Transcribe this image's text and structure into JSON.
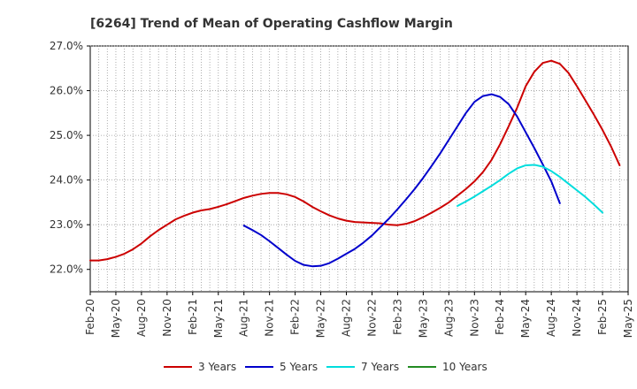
{
  "chart_data": {
    "type": "line",
    "title": "[6264]  Trend of Mean of Operating Cashflow Margin",
    "xlabel": "",
    "ylabel": "",
    "ylim": [
      21.5,
      27.0
    ],
    "yticks": [
      22.0,
      23.0,
      24.0,
      25.0,
      26.0,
      27.0
    ],
    "ytick_labels": [
      "22.0%",
      "23.0%",
      "24.0%",
      "25.0%",
      "26.0%",
      "27.0%"
    ],
    "x_start": "Feb-20",
    "x_count_months": 63,
    "xtick_labels": [
      "Feb-20",
      "May-20",
      "Aug-20",
      "Nov-20",
      "Feb-21",
      "May-21",
      "Aug-21",
      "Nov-21",
      "Feb-22",
      "May-22",
      "Aug-22",
      "Nov-22",
      "Feb-23",
      "May-23",
      "Aug-23",
      "Nov-23",
      "Feb-24",
      "May-24",
      "Aug-24",
      "Nov-24",
      "Feb-25",
      "May-25"
    ],
    "grid": true,
    "legend_position": "bottom",
    "series": [
      {
        "name": "3 Years",
        "color": "#cc0000",
        "start_index": 0,
        "values": [
          22.2,
          22.2,
          22.23,
          22.28,
          22.35,
          22.45,
          22.58,
          22.74,
          22.88,
          23.0,
          23.12,
          23.2,
          23.27,
          23.32,
          23.35,
          23.4,
          23.46,
          23.53,
          23.6,
          23.65,
          23.69,
          23.71,
          23.71,
          23.68,
          23.62,
          23.52,
          23.4,
          23.3,
          23.21,
          23.14,
          23.09,
          23.06,
          23.05,
          23.04,
          23.03,
          23.0,
          22.99,
          23.02,
          23.08,
          23.17,
          23.27,
          23.38,
          23.5,
          23.65,
          23.8,
          23.97,
          24.18,
          24.45,
          24.8,
          25.2,
          25.62,
          26.1,
          26.42,
          26.62,
          26.67,
          26.6,
          26.4,
          26.1,
          25.78,
          25.46,
          25.12,
          24.75,
          24.33
        ]
      },
      {
        "name": "5 Years",
        "color": "#0000cc",
        "start_index": 18,
        "values": [
          22.98,
          22.88,
          22.77,
          22.63,
          22.48,
          22.33,
          22.19,
          22.1,
          22.07,
          22.08,
          22.14,
          22.24,
          22.35,
          22.46,
          22.6,
          22.76,
          22.95,
          23.14,
          23.35,
          23.57,
          23.8,
          24.05,
          24.32,
          24.6,
          24.9,
          25.2,
          25.5,
          25.75,
          25.88,
          25.92,
          25.86,
          25.7,
          25.42,
          25.07,
          24.72,
          24.35,
          23.97,
          23.48
        ]
      },
      {
        "name": "7 Years",
        "color": "#00dddd",
        "start_index": 43,
        "values": [
          23.42,
          23.52,
          23.63,
          23.75,
          23.87,
          24.0,
          24.14,
          24.26,
          24.33,
          24.34,
          24.3,
          24.2,
          24.07,
          23.92,
          23.77,
          23.62,
          23.45,
          23.27
        ]
      },
      {
        "name": "10 Years",
        "color": "#228b22",
        "start_index": 0,
        "values": []
      }
    ]
  }
}
